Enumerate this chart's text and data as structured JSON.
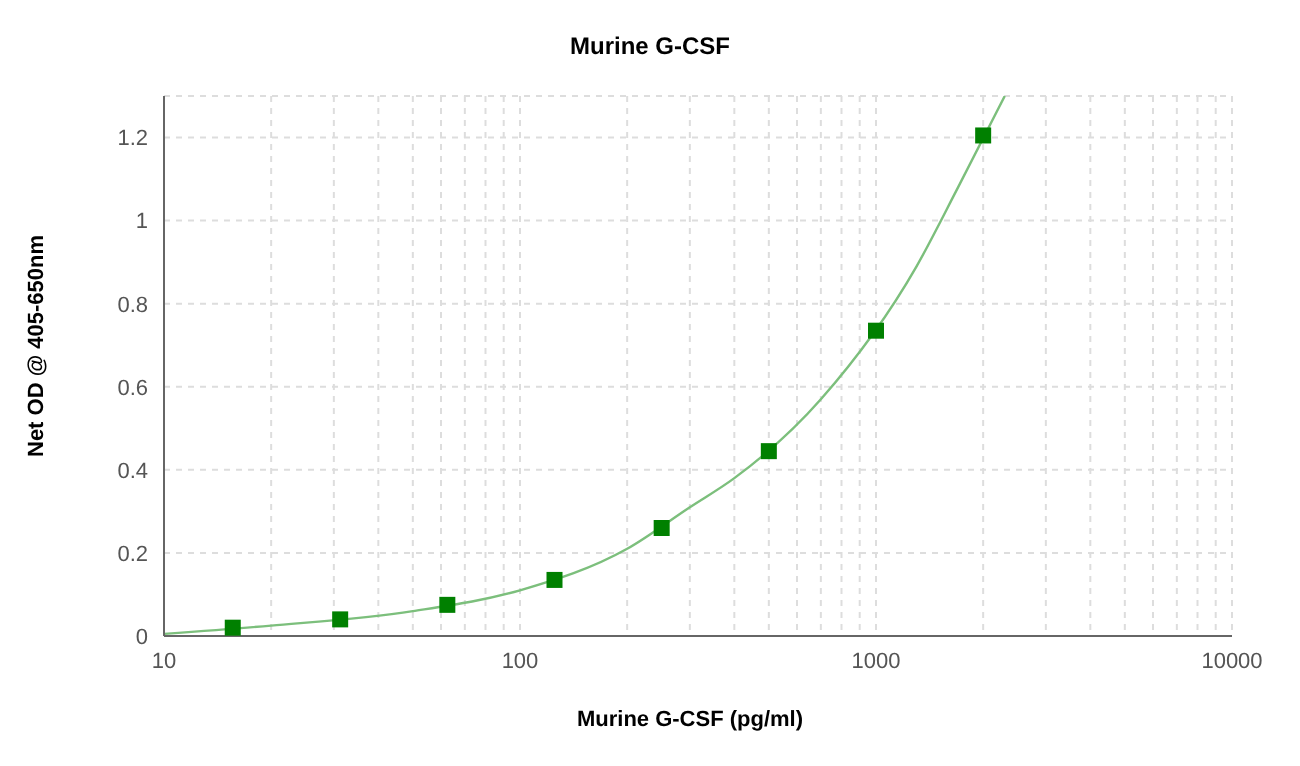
{
  "chart_data": {
    "type": "scatter",
    "title": "Murine G-CSF",
    "xlabel": "Murine G-CSF (pg/ml)",
    "ylabel": "Net OD @ 405-650nm",
    "log": "x",
    "grid": true,
    "xlim": [
      10,
      10000
    ],
    "xticks": [
      10,
      {
        "value": 20,
        "label": null
      },
      {
        "value": 30,
        "label": null
      },
      {
        "value": 40,
        "label": null
      },
      {
        "value": 50,
        "label": null
      },
      {
        "value": 60,
        "label": null
      },
      {
        "value": 70,
        "label": null
      },
      {
        "value": 80,
        "label": null
      },
      {
        "value": 90,
        "label": null
      },
      100,
      {
        "value": 200,
        "label": null
      },
      {
        "value": 300,
        "label": null
      },
      {
        "value": 400,
        "label": null
      },
      {
        "value": 500,
        "label": null
      },
      {
        "value": 600,
        "label": null
      },
      {
        "value": 700,
        "label": null
      },
      {
        "value": 800,
        "label": null
      },
      {
        "value": 900,
        "label": null
      },
      1000,
      {
        "value": 2000,
        "label": null
      },
      {
        "value": 3000,
        "label": null
      },
      {
        "value": 4000,
        "label": null
      },
      {
        "value": 5000,
        "label": null
      },
      {
        "value": 6000,
        "label": null
      },
      {
        "value": 7000,
        "label": null
      },
      {
        "value": 8000,
        "label": null
      },
      {
        "value": 9000,
        "label": null
      },
      10000
    ],
    "ylim": [
      0,
      1.3
    ],
    "yticks": [
      0,
      0.2,
      0.4,
      0.6,
      0.8,
      1,
      1.2
    ],
    "series": [
      {
        "type": "line",
        "marker": "none",
        "line_style": "solid",
        "color": "#7cbf7c",
        "x": [
          10,
          20,
          50,
          100,
          200,
          300,
          400,
          700,
          1300,
          1700,
          2300
        ],
        "values": [
          0.005,
          0.025,
          0.06,
          0.11,
          0.21,
          0.31,
          0.38,
          0.57,
          0.89,
          1.08,
          1.3
        ]
      },
      {
        "marker": "square",
        "color": "#008000",
        "x": [
          15.6,
          31.25,
          62.5,
          125,
          250,
          500,
          1000,
          2000
        ],
        "values": [
          0.02,
          0.04,
          0.075,
          0.135,
          0.26,
          0.445,
          0.735,
          1.205
        ]
      }
    ]
  }
}
